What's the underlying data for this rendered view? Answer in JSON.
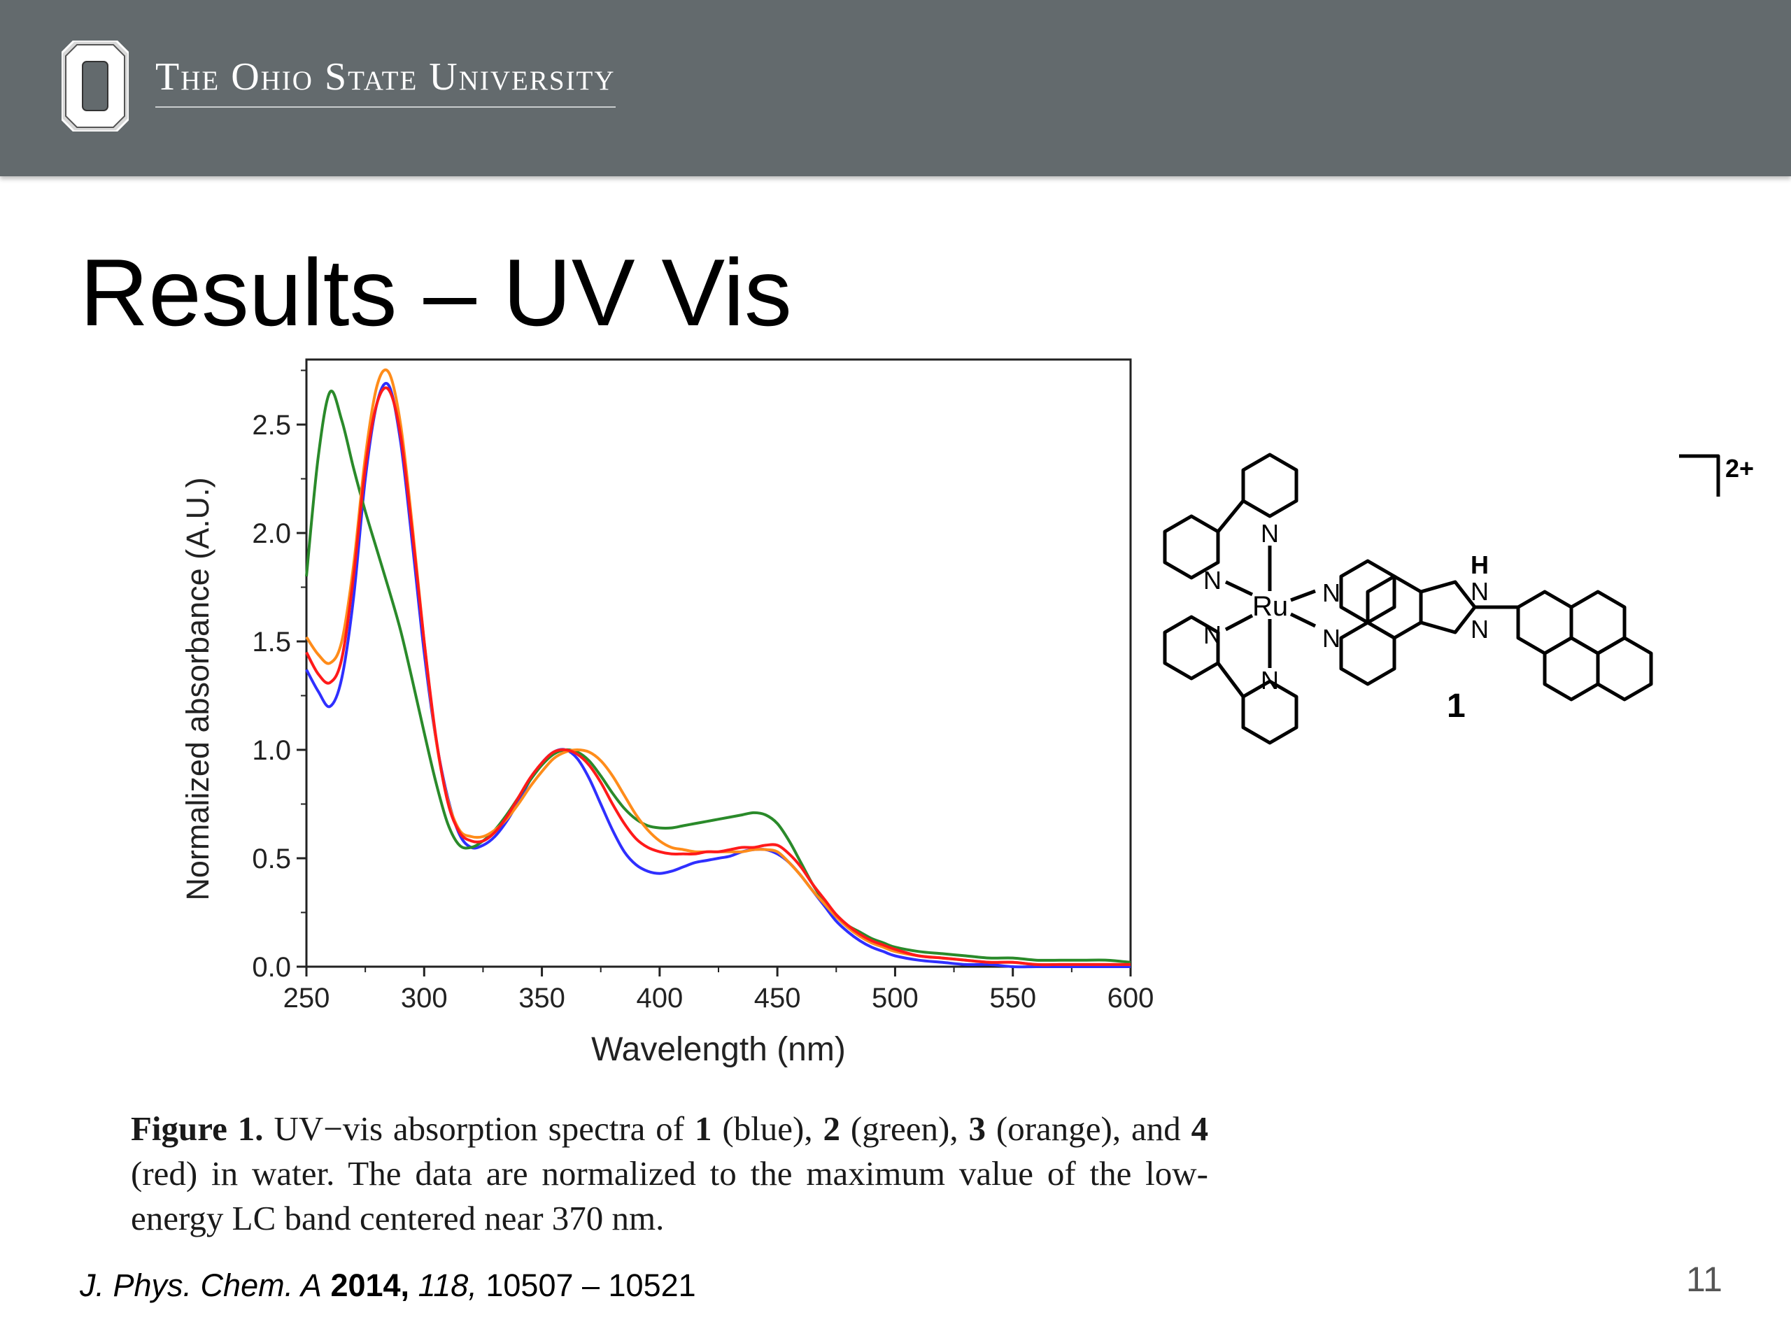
{
  "header": {
    "university_name": "The Ohio State University"
  },
  "slide": {
    "title": "Results – UV Vis",
    "page_number": "11"
  },
  "structure": {
    "metal_label": "Ru",
    "n_label": "N",
    "h_label": "H",
    "charge_label": "2+",
    "compound_number": "1"
  },
  "caption": {
    "figure_label": "Figure 1.",
    "lead": "UV−vis absorption spectra of",
    "c1": "1",
    "c1_color": "(blue),",
    "c2": "2",
    "c2_color": "(green),",
    "c3": "3",
    "c3_color": "(orange), and",
    "c4": "4",
    "tail": "(red) in water. The data are normalized to the maximum value of the low-energy LC band centered near 370 nm."
  },
  "citation": {
    "journal": "J. Phys. Chem. A",
    "year": "2014,",
    "volume": "118,",
    "pages": "10507 – 10521"
  },
  "chart_data": {
    "type": "line",
    "title": "",
    "xlabel": "Wavelength (nm)",
    "ylabel": "Normalized absorbance (A.U.)",
    "xlim": [
      250,
      600
    ],
    "ylim": [
      0,
      2.8
    ],
    "xticks": [
      "250",
      "300",
      "350",
      "400",
      "450",
      "500",
      "550",
      "600"
    ],
    "yticks": [
      "0.0",
      "0.5",
      "1.0",
      "1.5",
      "2.0",
      "2.5"
    ],
    "x": [
      250,
      255,
      260,
      265,
      270,
      275,
      280,
      285,
      290,
      295,
      300,
      305,
      310,
      315,
      320,
      325,
      330,
      335,
      340,
      345,
      350,
      355,
      360,
      365,
      370,
      375,
      380,
      385,
      390,
      395,
      400,
      405,
      410,
      415,
      420,
      425,
      430,
      435,
      440,
      445,
      450,
      455,
      460,
      465,
      470,
      475,
      480,
      485,
      490,
      495,
      500,
      510,
      520,
      530,
      540,
      550,
      560,
      570,
      580,
      590,
      600
    ],
    "series": [
      {
        "color": "#2f2fff",
        "values": [
          1.37,
          1.27,
          1.2,
          1.33,
          1.7,
          2.25,
          2.6,
          2.68,
          2.42,
          1.95,
          1.45,
          1.05,
          0.78,
          0.61,
          0.55,
          0.56,
          0.6,
          0.67,
          0.76,
          0.86,
          0.94,
          0.99,
          1.0,
          0.96,
          0.87,
          0.75,
          0.63,
          0.53,
          0.47,
          0.44,
          0.43,
          0.44,
          0.46,
          0.48,
          0.49,
          0.5,
          0.51,
          0.53,
          0.54,
          0.54,
          0.52,
          0.48,
          0.42,
          0.35,
          0.28,
          0.21,
          0.16,
          0.12,
          0.09,
          0.07,
          0.05,
          0.03,
          0.02,
          0.01,
          0.01,
          0.0,
          0.0,
          0.0,
          0.0,
          0.0,
          0.0
        ]
      },
      {
        "color": "#2a8a2a",
        "values": [
          1.8,
          2.35,
          2.65,
          2.52,
          2.3,
          2.1,
          1.92,
          1.74,
          1.55,
          1.32,
          1.08,
          0.85,
          0.66,
          0.56,
          0.55,
          0.58,
          0.63,
          0.7,
          0.78,
          0.86,
          0.93,
          0.98,
          1.0,
          0.99,
          0.95,
          0.88,
          0.8,
          0.73,
          0.68,
          0.65,
          0.64,
          0.64,
          0.65,
          0.66,
          0.67,
          0.68,
          0.69,
          0.7,
          0.71,
          0.7,
          0.66,
          0.58,
          0.48,
          0.38,
          0.3,
          0.24,
          0.19,
          0.16,
          0.13,
          0.11,
          0.09,
          0.07,
          0.06,
          0.05,
          0.04,
          0.04,
          0.03,
          0.03,
          0.03,
          0.03,
          0.02
        ]
      },
      {
        "color": "#ff8c1a",
        "values": [
          1.52,
          1.44,
          1.4,
          1.5,
          1.85,
          2.35,
          2.68,
          2.74,
          2.5,
          2.03,
          1.5,
          1.05,
          0.77,
          0.63,
          0.6,
          0.6,
          0.63,
          0.68,
          0.75,
          0.83,
          0.9,
          0.96,
          0.99,
          1.0,
          0.99,
          0.95,
          0.88,
          0.79,
          0.7,
          0.63,
          0.58,
          0.55,
          0.54,
          0.53,
          0.53,
          0.53,
          0.53,
          0.53,
          0.54,
          0.54,
          0.53,
          0.48,
          0.42,
          0.35,
          0.29,
          0.23,
          0.18,
          0.14,
          0.11,
          0.09,
          0.07,
          0.05,
          0.04,
          0.03,
          0.02,
          0.02,
          0.01,
          0.01,
          0.01,
          0.01,
          0.01
        ]
      },
      {
        "color": "#ff1a1a",
        "values": [
          1.45,
          1.35,
          1.31,
          1.42,
          1.8,
          2.3,
          2.6,
          2.66,
          2.45,
          2.0,
          1.5,
          1.06,
          0.76,
          0.62,
          0.58,
          0.58,
          0.62,
          0.69,
          0.78,
          0.87,
          0.94,
          0.99,
          1.0,
          0.98,
          0.93,
          0.85,
          0.75,
          0.66,
          0.59,
          0.55,
          0.53,
          0.52,
          0.52,
          0.52,
          0.53,
          0.53,
          0.54,
          0.55,
          0.55,
          0.56,
          0.56,
          0.52,
          0.46,
          0.38,
          0.31,
          0.24,
          0.19,
          0.15,
          0.12,
          0.1,
          0.08,
          0.05,
          0.04,
          0.03,
          0.02,
          0.02,
          0.01,
          0.01,
          0.01,
          0.01,
          0.01
        ]
      }
    ]
  }
}
